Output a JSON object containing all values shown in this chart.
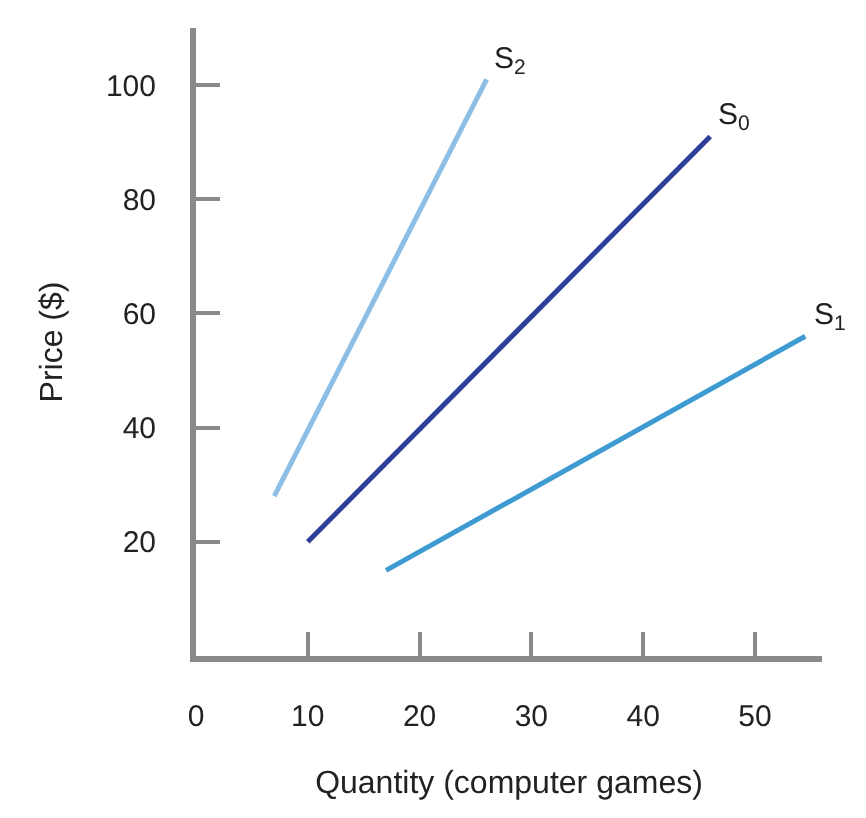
{
  "chart_data": {
    "type": "line",
    "xlabel": "Quantity (computer games)",
    "ylabel": "Price ($)",
    "xlim": [
      0,
      56
    ],
    "ylim": [
      0,
      110
    ],
    "xticks": [
      0,
      10,
      20,
      30,
      40,
      50
    ],
    "yticks": [
      20,
      40,
      60,
      80,
      100
    ],
    "legend": false,
    "marker": "none",
    "line_style": "solid",
    "series": [
      {
        "name": "S$_{2}$",
        "color": "#8dbfe6",
        "x": [
          7,
          26
        ],
        "values": [
          28,
          101
        ]
      },
      {
        "name": "S$_{0}$",
        "color": "#2e3f9a",
        "x": [
          10,
          46
        ],
        "values": [
          20,
          91
        ]
      },
      {
        "name": "S$_{1}$",
        "color": "#3d9bd1",
        "x": [
          17,
          54.5
        ],
        "values": [
          15,
          56
        ]
      }
    ]
  }
}
